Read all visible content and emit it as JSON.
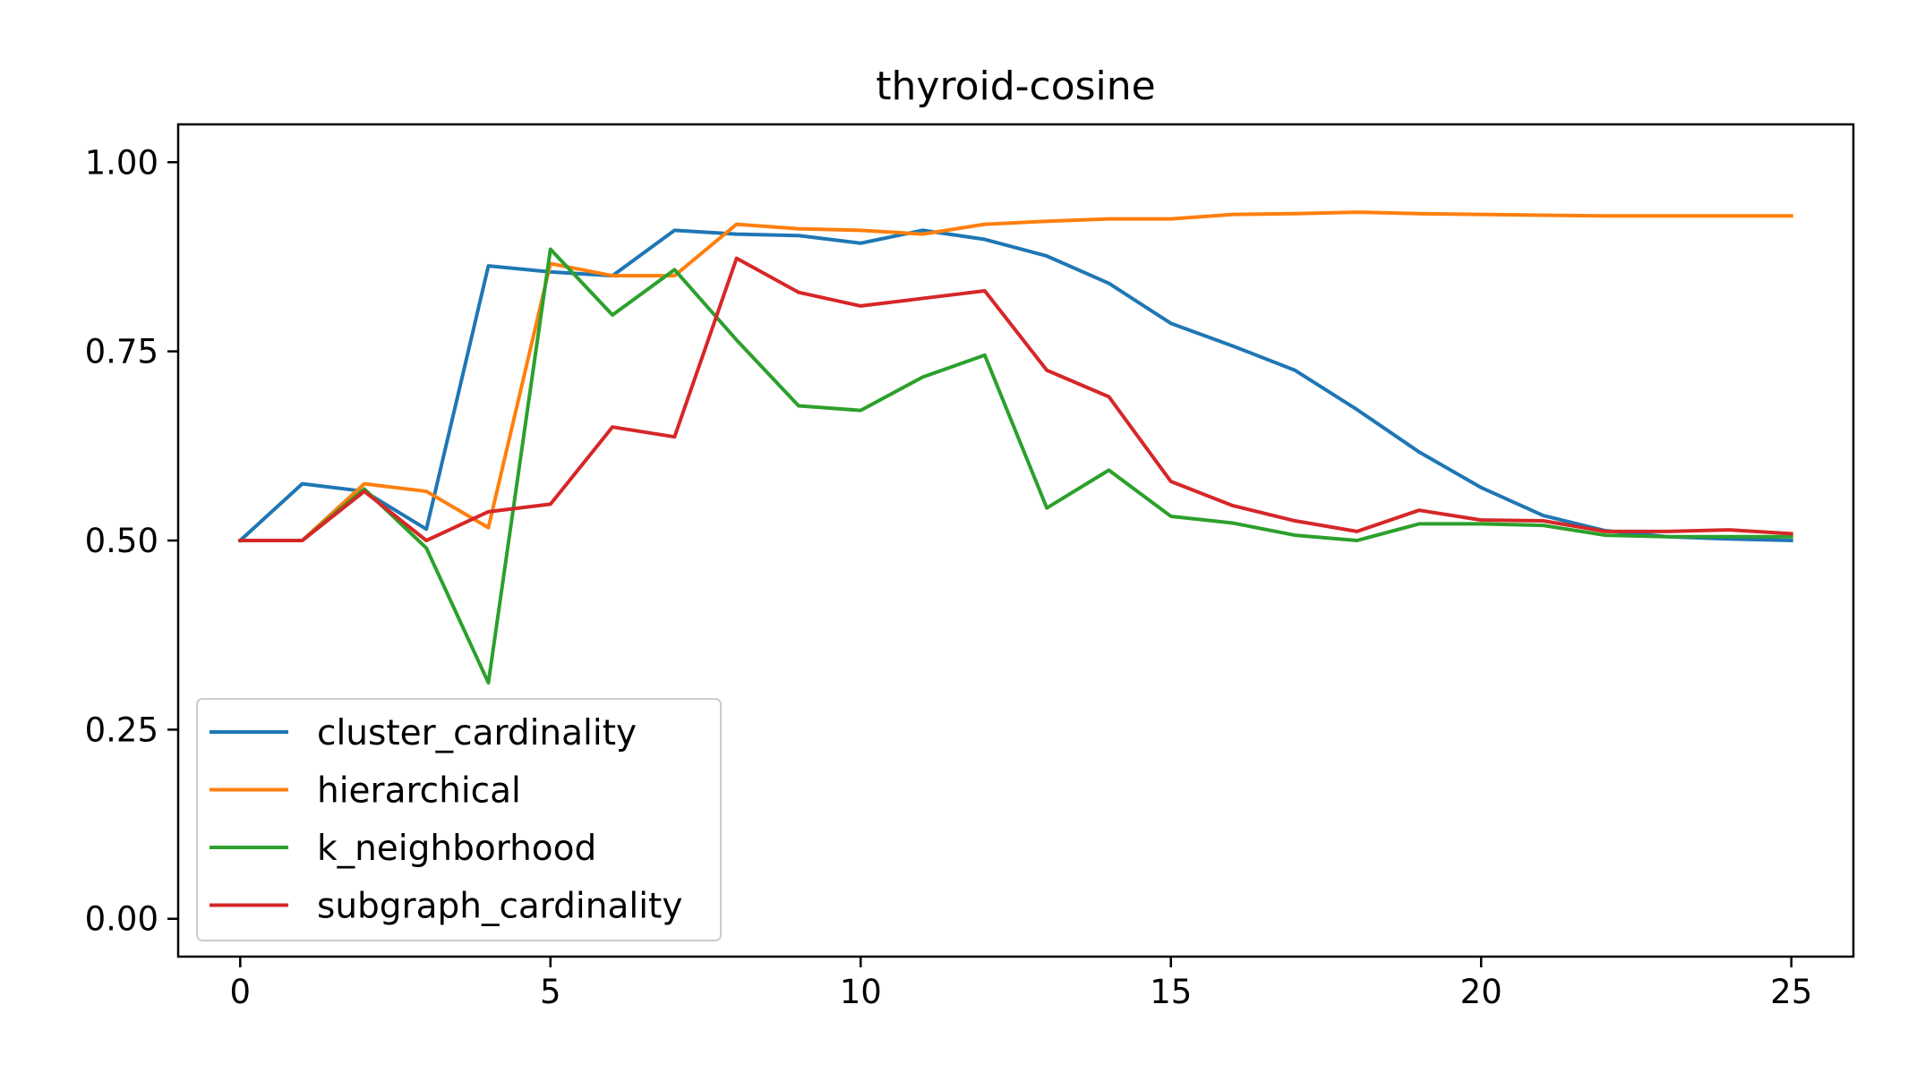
{
  "chart_data": {
    "type": "line",
    "title": "thyroid-cosine",
    "xlabel": "",
    "ylabel": "",
    "xlim": [
      -1,
      26
    ],
    "ylim": [
      -0.05,
      1.05
    ],
    "xticks": [
      0,
      5,
      10,
      15,
      20,
      25
    ],
    "xtick_labels": [
      "0",
      "5",
      "10",
      "15",
      "20",
      "25"
    ],
    "yticks": [
      0.0,
      0.25,
      0.5,
      0.75,
      1.0
    ],
    "ytick_labels": [
      "0.00",
      "0.25",
      "0.50",
      "0.75",
      "1.00"
    ],
    "grid": false,
    "legend_position": "lower-left",
    "x": [
      0,
      1,
      2,
      3,
      4,
      5,
      6,
      7,
      8,
      9,
      10,
      11,
      12,
      13,
      14,
      15,
      16,
      17,
      18,
      19,
      20,
      21,
      22,
      23,
      24,
      25
    ],
    "series": [
      {
        "name": "cluster_cardinality",
        "color": "#1f77b4",
        "values": [
          0.5,
          0.575,
          0.565,
          0.515,
          0.863,
          0.855,
          0.85,
          0.91,
          0.905,
          0.903,
          0.893,
          0.91,
          0.898,
          0.876,
          0.84,
          0.787,
          0.757,
          0.725,
          0.673,
          0.617,
          0.57,
          0.533,
          0.513,
          0.505,
          0.502,
          0.5
        ]
      },
      {
        "name": "hierarchical",
        "color": "#ff7f0e",
        "values": [
          0.5,
          0.5,
          0.575,
          0.565,
          0.517,
          0.866,
          0.85,
          0.85,
          0.918,
          0.912,
          0.91,
          0.905,
          0.918,
          0.922,
          0.925,
          0.925,
          0.931,
          0.932,
          0.934,
          0.932,
          0.931,
          0.93,
          0.929,
          0.929,
          0.929,
          0.929
        ]
      },
      {
        "name": "k_neighborhood",
        "color": "#2ca02c",
        "values": [
          0.5,
          0.5,
          0.568,
          0.49,
          0.312,
          0.885,
          0.798,
          0.858,
          0.765,
          0.678,
          0.672,
          0.716,
          0.745,
          0.543,
          0.593,
          0.532,
          0.523,
          0.507,
          0.5,
          0.522,
          0.522,
          0.52,
          0.507,
          0.505,
          0.505,
          0.505
        ]
      },
      {
        "name": "subgraph_cardinality",
        "color": "#d62728",
        "values": [
          0.5,
          0.5,
          0.565,
          0.5,
          0.538,
          0.548,
          0.65,
          0.637,
          0.873,
          0.828,
          0.81,
          0.82,
          0.83,
          0.725,
          0.69,
          0.578,
          0.546,
          0.526,
          0.512,
          0.54,
          0.527,
          0.526,
          0.512,
          0.512,
          0.514,
          0.509
        ]
      }
    ]
  }
}
